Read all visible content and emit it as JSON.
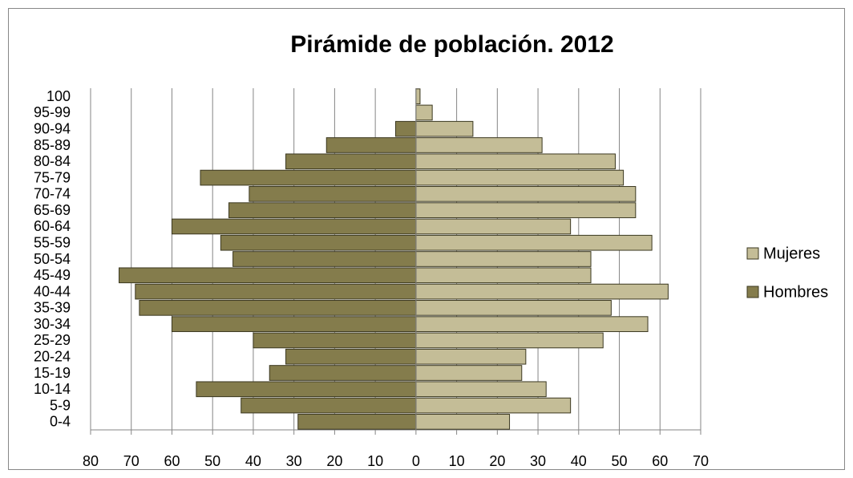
{
  "chart_data": {
    "type": "bar",
    "orientation": "horizontal",
    "title": "Pirámide de población. 2012",
    "categories": [
      "0-4",
      "5-9",
      "10-14",
      "15-19",
      "20-24",
      "25-29",
      "30-34",
      "35-39",
      "40-44",
      "45-49",
      "50-54",
      "55-59",
      "60-64",
      "65-69",
      "70-74",
      "75-79",
      "80-84",
      "85-89",
      "90-94",
      "95-99",
      "100"
    ],
    "series": [
      {
        "name": "Mujeres",
        "color": "#c4bd97",
        "values": [
          23,
          38,
          32,
          26,
          27,
          46,
          57,
          48,
          62,
          43,
          43,
          58,
          38,
          54,
          54,
          51,
          49,
          31,
          14,
          4,
          1
        ]
      },
      {
        "name": "Hombres",
        "color": "#847c4c",
        "values": [
          -29,
          -43,
          -54,
          -36,
          -32,
          -40,
          -60,
          -68,
          -69,
          -73,
          -45,
          -48,
          -60,
          -46,
          -41,
          -53,
          -32,
          -22,
          -5,
          0,
          0
        ]
      }
    ],
    "xlim": [
      -80,
      70
    ],
    "xticks": [
      {
        "value": -80,
        "label": "80"
      },
      {
        "value": -70,
        "label": "70"
      },
      {
        "value": -60,
        "label": "60"
      },
      {
        "value": -50,
        "label": "50"
      },
      {
        "value": -40,
        "label": "40"
      },
      {
        "value": -30,
        "label": "30"
      },
      {
        "value": -20,
        "label": "20"
      },
      {
        "value": -10,
        "label": "10"
      },
      0,
      10,
      20,
      30,
      40,
      50,
      60,
      70
    ],
    "grid": true,
    "legend": "right"
  }
}
